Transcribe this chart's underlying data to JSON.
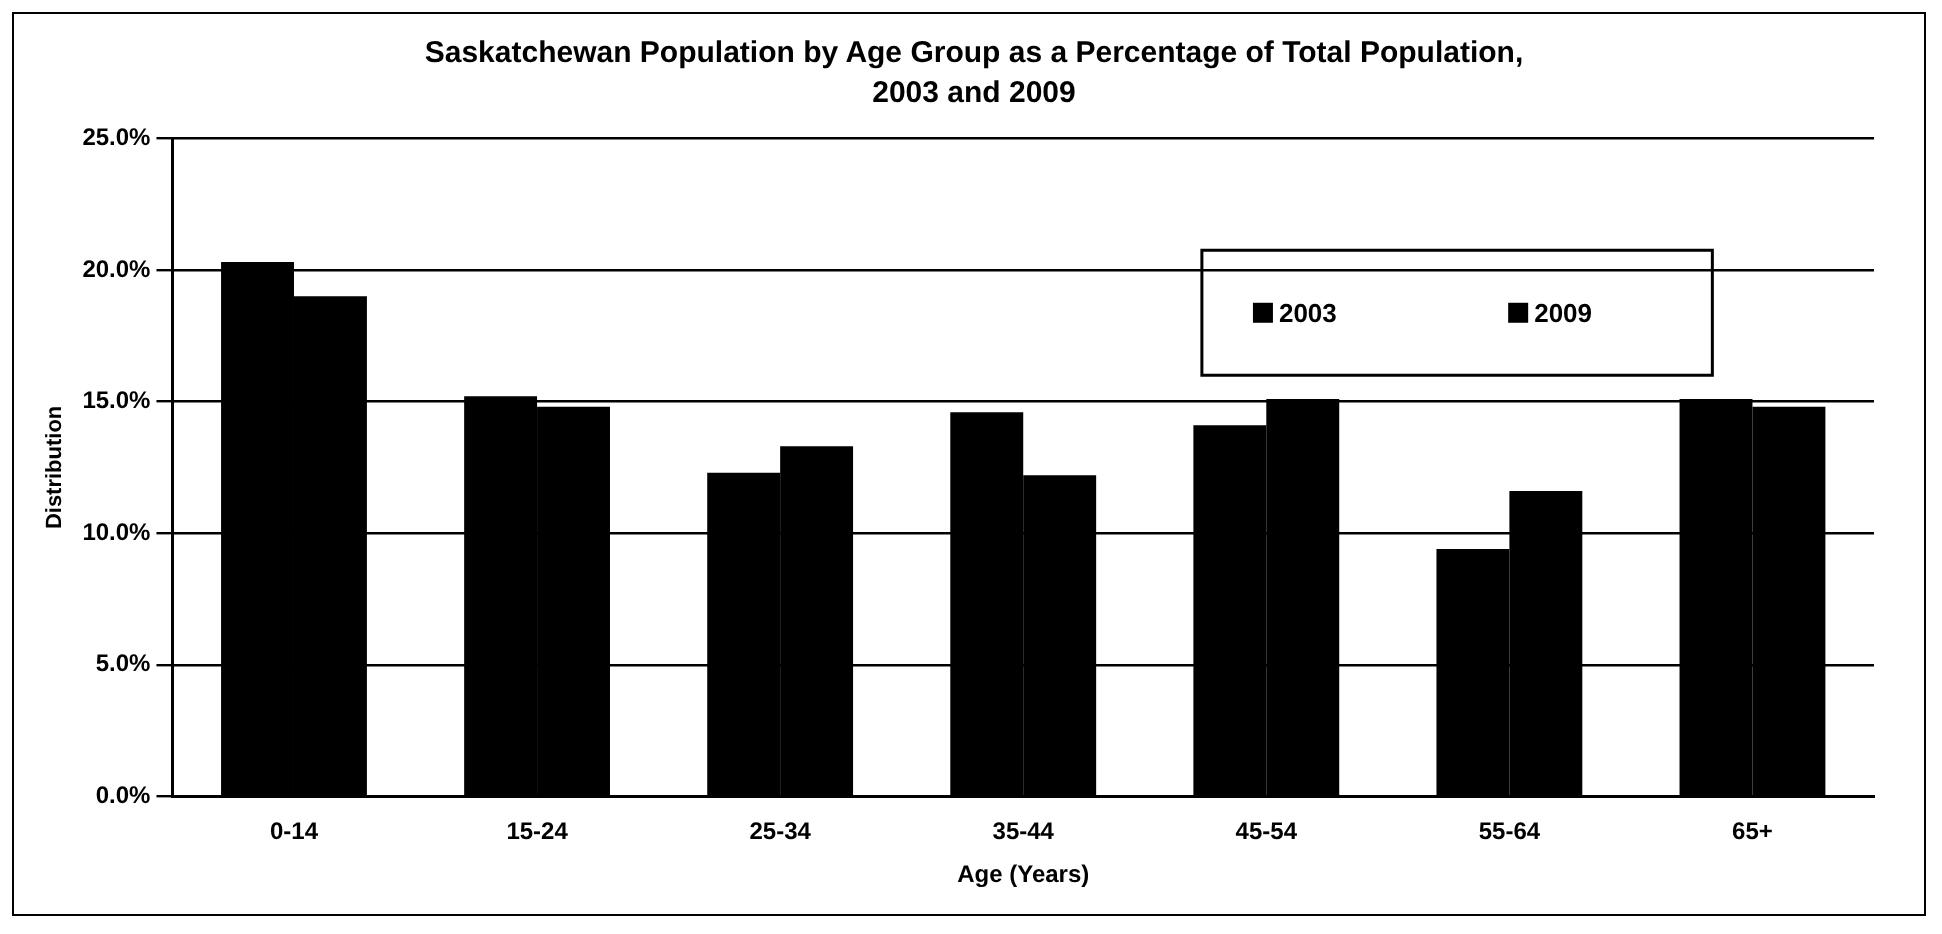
{
  "chart_data": {
    "type": "bar",
    "title": "Saskatchewan Population by Age Group as a Percentage of Total Population, 2003 and 2009",
    "xlabel": "Age (Years)",
    "ylabel": "Distribution",
    "categories": [
      "0-14",
      "15-24",
      "25-34",
      "35-44",
      "45-54",
      "55-64",
      "65+"
    ],
    "series": [
      {
        "name": "2003",
        "color": "#000000",
        "values": [
          20.3,
          15.2,
          12.3,
          14.6,
          14.1,
          9.4,
          15.1
        ]
      },
      {
        "name": "2009",
        "color": "#000000",
        "values": [
          19.0,
          14.8,
          13.3,
          12.2,
          15.1,
          11.6,
          14.8
        ]
      }
    ],
    "ylim": [
      0,
      25
    ],
    "yticks": [
      {
        "value": 0,
        "label": "0.0%"
      },
      {
        "value": 5,
        "label": "5.0%"
      },
      {
        "value": 10,
        "label": "10.0%"
      },
      {
        "value": 15,
        "label": "15.0%"
      },
      {
        "value": 20,
        "label": "20.0%"
      },
      {
        "value": 25,
        "label": "25.0%"
      }
    ],
    "grid": "y",
    "legend": "top right"
  }
}
